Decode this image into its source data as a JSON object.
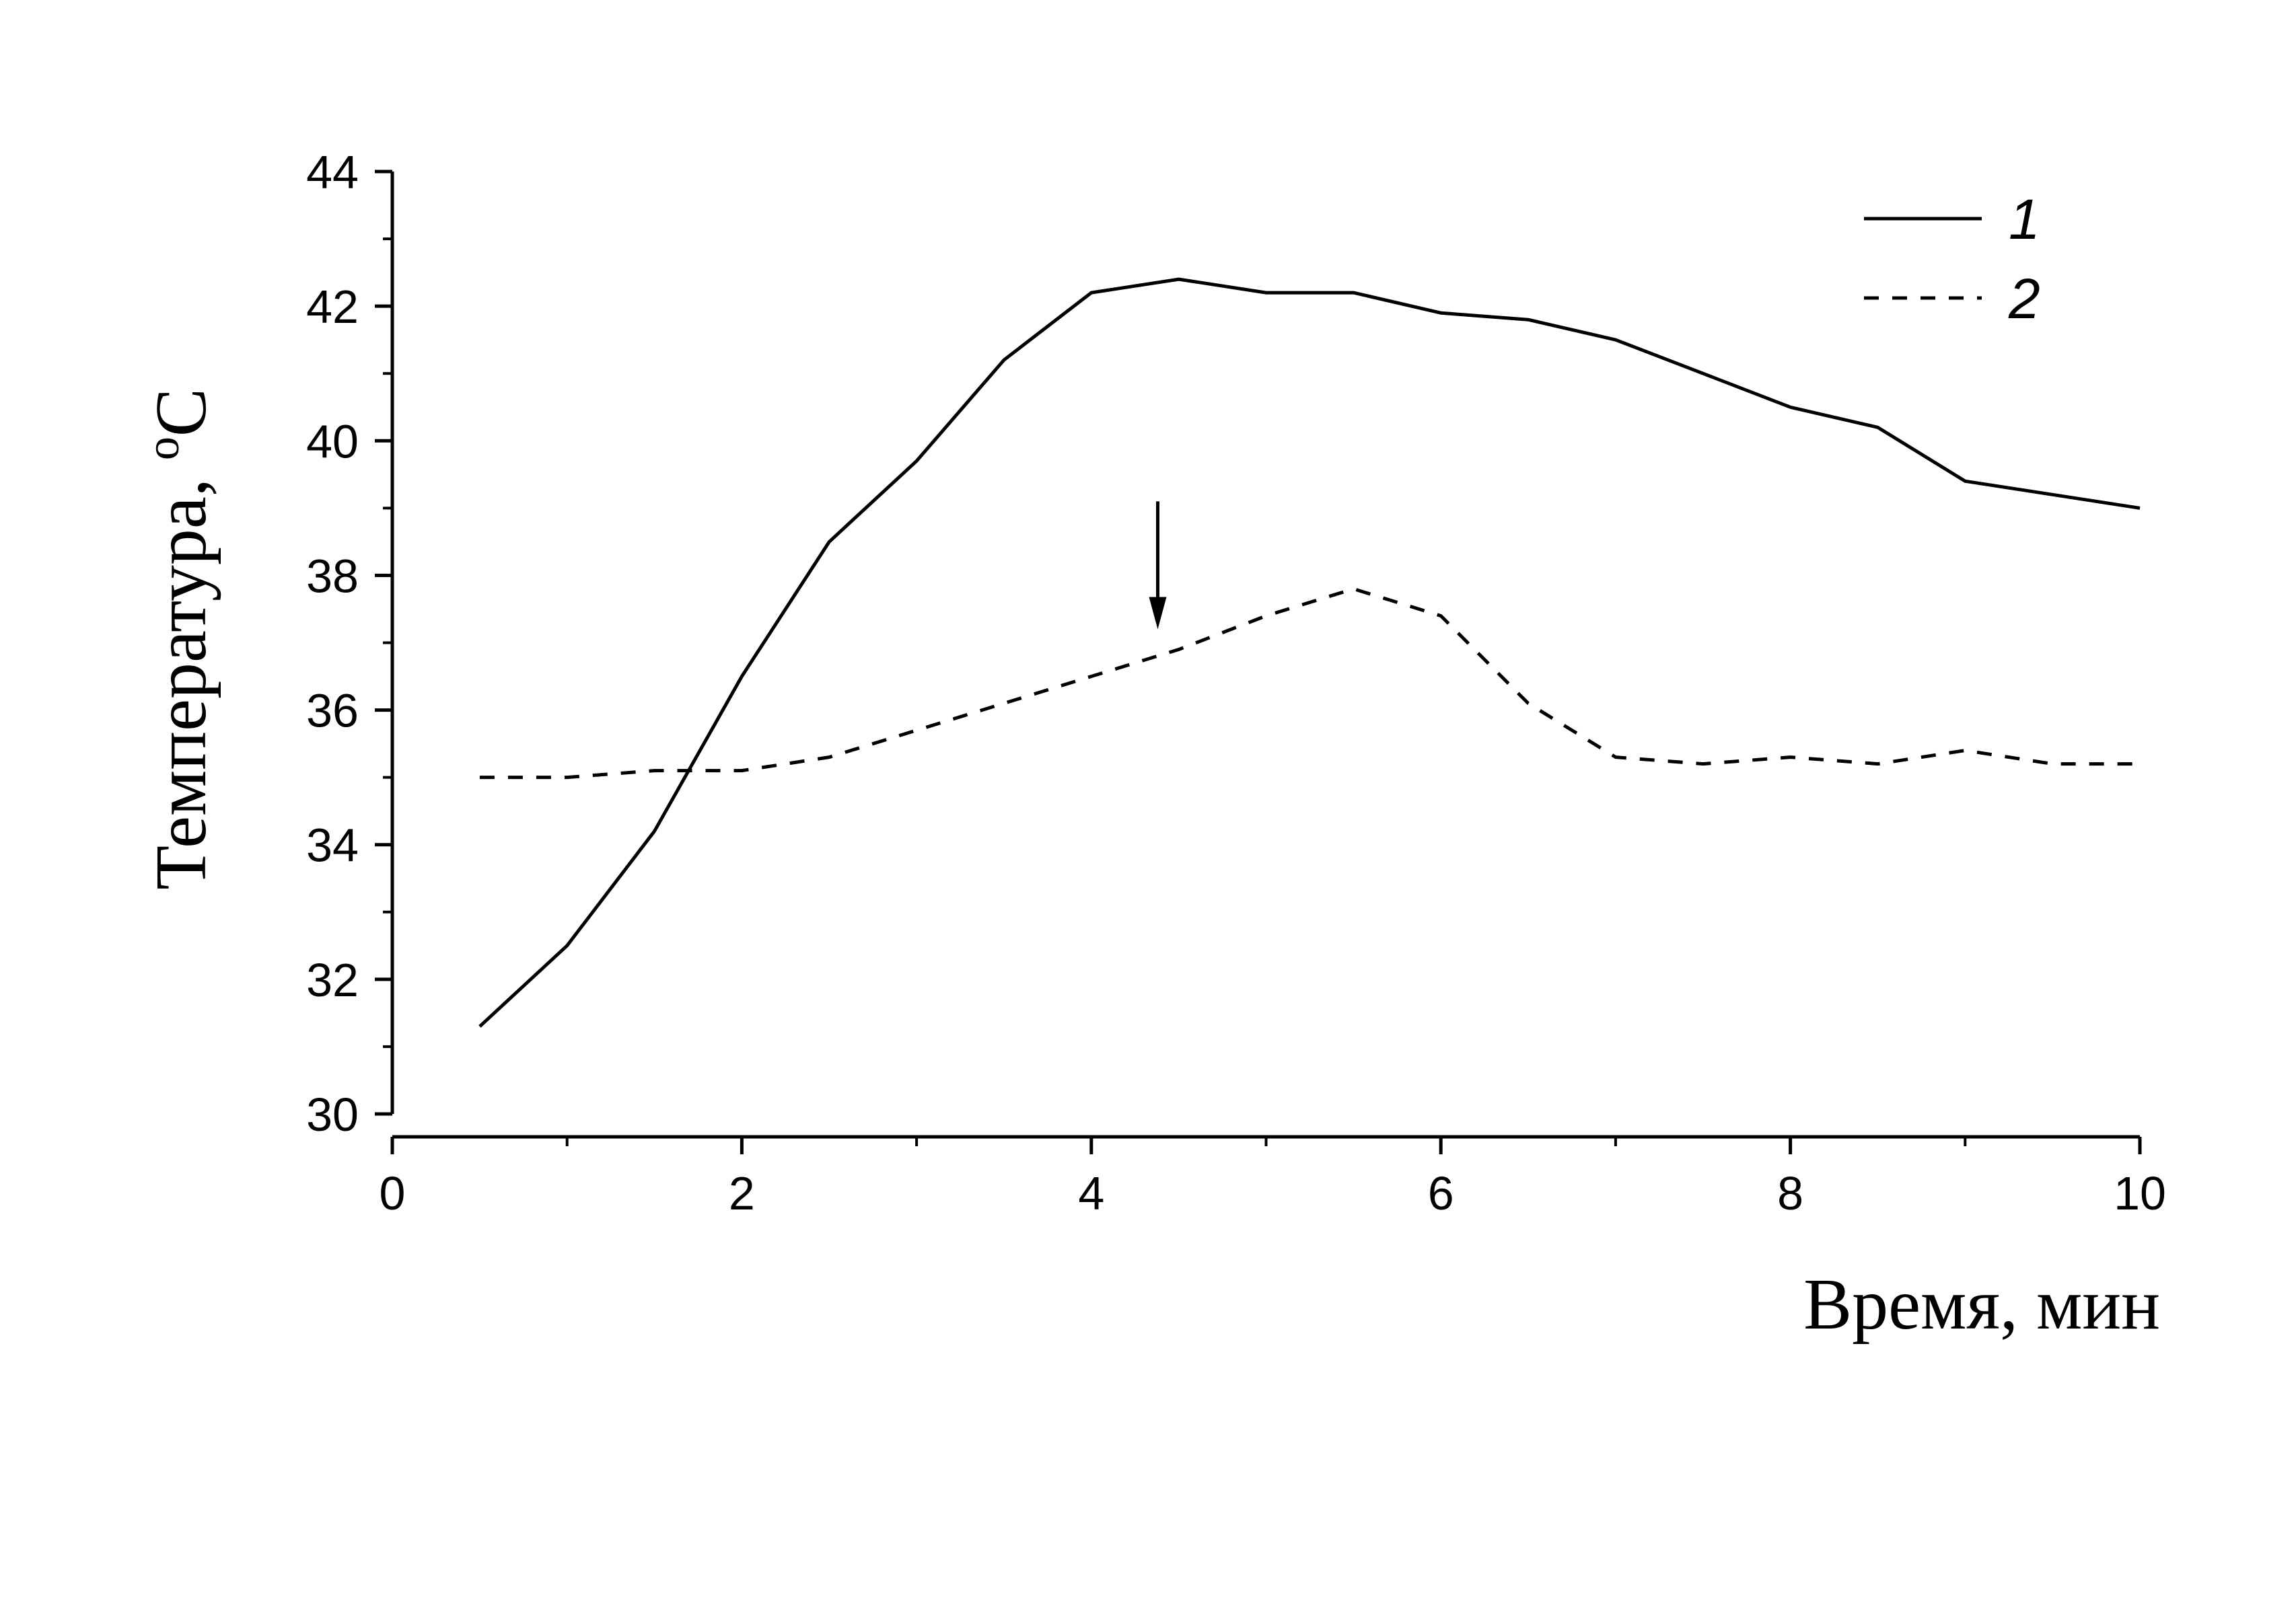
{
  "chart_data": {
    "type": "line",
    "xlabel": "Время, мин",
    "ylabel": "Температура, ",
    "ylabel_unit_sup": "o",
    "ylabel_unit": "C",
    "xlim": [
      0,
      10
    ],
    "ylim": [
      30,
      44
    ],
    "xticks": [
      0,
      2,
      4,
      6,
      8,
      10
    ],
    "yticks": [
      30,
      32,
      34,
      36,
      38,
      40,
      42,
      44
    ],
    "grid": false,
    "legend_position": "top-right",
    "series": [
      {
        "name": "1",
        "style": "solid",
        "x": [
          0.5,
          1,
          1.5,
          2,
          2.5,
          3,
          3.5,
          4,
          4.5,
          5,
          5.5,
          6,
          6.5,
          7,
          7.5,
          8,
          8.5,
          9,
          9.5,
          10
        ],
        "y": [
          31.3,
          32.5,
          34.2,
          36.5,
          38.5,
          39.7,
          41.2,
          42.2,
          42.4,
          42.2,
          42.2,
          41.9,
          41.8,
          41.5,
          41.0,
          40.5,
          40.2,
          39.4,
          39.2,
          39.0
        ]
      },
      {
        "name": "2",
        "style": "dashed",
        "x": [
          0.5,
          1,
          1.5,
          2,
          2.5,
          3,
          3.5,
          4,
          4.5,
          5,
          5.5,
          6,
          6.5,
          7,
          7.5,
          8,
          8.5,
          9,
          9.5,
          10
        ],
        "y": [
          35.0,
          35.0,
          35.1,
          35.1,
          35.3,
          35.7,
          36.1,
          36.5,
          36.9,
          37.4,
          37.8,
          37.4,
          36.1,
          35.3,
          35.2,
          35.3,
          35.2,
          35.4,
          35.2,
          35.2
        ]
      }
    ],
    "annotations": [
      {
        "type": "arrow",
        "x": 4.38,
        "y_from": 39.1,
        "y_to": 37.2
      }
    ],
    "line_color": "#000000"
  }
}
